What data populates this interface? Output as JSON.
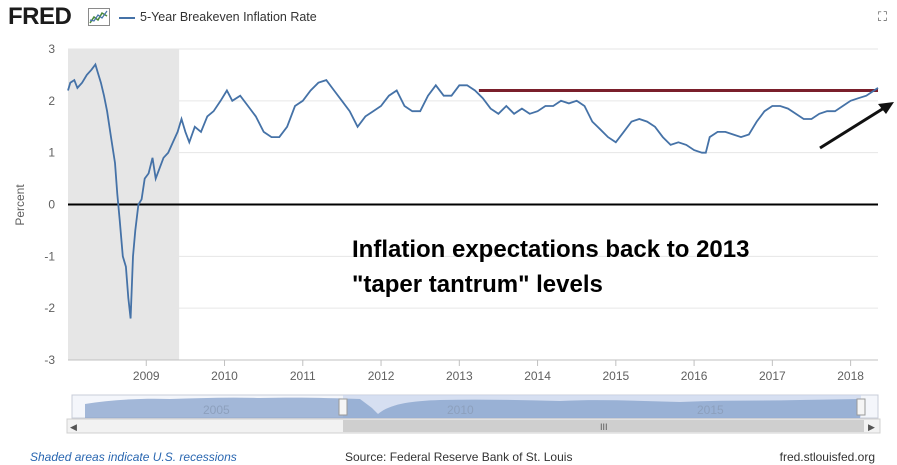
{
  "header": {
    "logo_text": "FRED",
    "series_title": "5-Year Breakeven Inflation Rate"
  },
  "footer": {
    "recession_note": "Shaded areas indicate U.S. recessions",
    "source": "Source: Federal Reserve Bank of St. Louis",
    "site": "fred.stlouisfed.org"
  },
  "navigator": {
    "year_labels": [
      "2005",
      "2010",
      "2015"
    ],
    "grip": "III",
    "left_arrow": "◀",
    "right_arrow": "▶"
  },
  "annotation": {
    "line1": "Inflation expectations back to 2013",
    "line2": "\"taper tantrum\" levels"
  },
  "colors": {
    "series": "#4572a7",
    "recession": "#e6e6e6",
    "reference_line": "#7a1f2b",
    "arrow": "#111111",
    "zero_line": "#000000"
  },
  "chart_data": {
    "type": "line",
    "title": "5-Year Breakeven Inflation Rate",
    "ylabel": "Percent",
    "xlabel": "",
    "ylim": [
      -3,
      3
    ],
    "xlim": [
      2008.0,
      2018.35
    ],
    "y_ticks": [
      -3,
      -2,
      -1,
      0,
      1,
      2,
      3
    ],
    "x_ticks": [
      2009,
      2010,
      2011,
      2012,
      2013,
      2014,
      2015,
      2016,
      2017,
      2018
    ],
    "recession_shading": [
      [
        2008.0,
        2009.42
      ]
    ],
    "reference_line": {
      "y": 2.2,
      "x_start": 2013.25,
      "x_end": 2018.35
    },
    "zero_line": true,
    "series": [
      {
        "name": "5-Year Breakeven Inflation Rate",
        "points": [
          [
            2008.0,
            2.2
          ],
          [
            2008.03,
            2.35
          ],
          [
            2008.08,
            2.4
          ],
          [
            2008.12,
            2.25
          ],
          [
            2008.18,
            2.35
          ],
          [
            2008.24,
            2.5
          ],
          [
            2008.3,
            2.6
          ],
          [
            2008.35,
            2.7
          ],
          [
            2008.38,
            2.55
          ],
          [
            2008.42,
            2.35
          ],
          [
            2008.46,
            2.1
          ],
          [
            2008.5,
            1.8
          ],
          [
            2008.55,
            1.3
          ],
          [
            2008.6,
            0.8
          ],
          [
            2008.63,
            0.2
          ],
          [
            2008.66,
            -0.3
          ],
          [
            2008.7,
            -1.0
          ],
          [
            2008.74,
            -1.2
          ],
          [
            2008.77,
            -1.8
          ],
          [
            2008.8,
            -2.2
          ],
          [
            2008.83,
            -1.0
          ],
          [
            2008.86,
            -0.5
          ],
          [
            2008.9,
            0.0
          ],
          [
            2008.94,
            0.1
          ],
          [
            2008.98,
            0.5
          ],
          [
            2009.03,
            0.6
          ],
          [
            2009.08,
            0.9
          ],
          [
            2009.12,
            0.5
          ],
          [
            2009.17,
            0.7
          ],
          [
            2009.22,
            0.9
          ],
          [
            2009.28,
            1.0
          ],
          [
            2009.34,
            1.2
          ],
          [
            2009.4,
            1.4
          ],
          [
            2009.45,
            1.65
          ],
          [
            2009.5,
            1.4
          ],
          [
            2009.55,
            1.2
          ],
          [
            2009.62,
            1.5
          ],
          [
            2009.7,
            1.4
          ],
          [
            2009.78,
            1.7
          ],
          [
            2009.86,
            1.8
          ],
          [
            2009.95,
            2.0
          ],
          [
            2010.03,
            2.2
          ],
          [
            2010.1,
            2.0
          ],
          [
            2010.2,
            2.1
          ],
          [
            2010.3,
            1.9
          ],
          [
            2010.4,
            1.7
          ],
          [
            2010.5,
            1.4
          ],
          [
            2010.6,
            1.3
          ],
          [
            2010.7,
            1.3
          ],
          [
            2010.8,
            1.5
          ],
          [
            2010.9,
            1.9
          ],
          [
            2011.0,
            2.0
          ],
          [
            2011.1,
            2.2
          ],
          [
            2011.2,
            2.35
          ],
          [
            2011.3,
            2.4
          ],
          [
            2011.4,
            2.2
          ],
          [
            2011.5,
            2.0
          ],
          [
            2011.6,
            1.8
          ],
          [
            2011.7,
            1.5
          ],
          [
            2011.8,
            1.7
          ],
          [
            2011.9,
            1.8
          ],
          [
            2012.0,
            1.9
          ],
          [
            2012.1,
            2.1
          ],
          [
            2012.2,
            2.2
          ],
          [
            2012.3,
            1.9
          ],
          [
            2012.4,
            1.8
          ],
          [
            2012.5,
            1.8
          ],
          [
            2012.6,
            2.1
          ],
          [
            2012.7,
            2.3
          ],
          [
            2012.8,
            2.1
          ],
          [
            2012.9,
            2.1
          ],
          [
            2013.0,
            2.3
          ],
          [
            2013.1,
            2.3
          ],
          [
            2013.2,
            2.2
          ],
          [
            2013.3,
            2.05
          ],
          [
            2013.4,
            1.85
          ],
          [
            2013.5,
            1.75
          ],
          [
            2013.6,
            1.9
          ],
          [
            2013.7,
            1.75
          ],
          [
            2013.8,
            1.85
          ],
          [
            2013.9,
            1.75
          ],
          [
            2014.0,
            1.8
          ],
          [
            2014.1,
            1.9
          ],
          [
            2014.2,
            1.9
          ],
          [
            2014.3,
            2.0
          ],
          [
            2014.4,
            1.95
          ],
          [
            2014.5,
            2.0
          ],
          [
            2014.6,
            1.9
          ],
          [
            2014.7,
            1.6
          ],
          [
            2014.8,
            1.45
          ],
          [
            2014.9,
            1.3
          ],
          [
            2015.0,
            1.2
          ],
          [
            2015.1,
            1.4
          ],
          [
            2015.2,
            1.6
          ],
          [
            2015.3,
            1.65
          ],
          [
            2015.4,
            1.6
          ],
          [
            2015.5,
            1.5
          ],
          [
            2015.6,
            1.3
          ],
          [
            2015.7,
            1.15
          ],
          [
            2015.8,
            1.2
          ],
          [
            2015.9,
            1.15
          ],
          [
            2016.0,
            1.05
          ],
          [
            2016.1,
            1.0
          ],
          [
            2016.15,
            1.0
          ],
          [
            2016.2,
            1.3
          ],
          [
            2016.3,
            1.4
          ],
          [
            2016.4,
            1.4
          ],
          [
            2016.5,
            1.35
          ],
          [
            2016.6,
            1.3
          ],
          [
            2016.7,
            1.35
          ],
          [
            2016.8,
            1.6
          ],
          [
            2016.9,
            1.8
          ],
          [
            2017.0,
            1.9
          ],
          [
            2017.1,
            1.9
          ],
          [
            2017.2,
            1.85
          ],
          [
            2017.3,
            1.75
          ],
          [
            2017.4,
            1.65
          ],
          [
            2017.5,
            1.65
          ],
          [
            2017.6,
            1.75
          ],
          [
            2017.7,
            1.8
          ],
          [
            2017.8,
            1.8
          ],
          [
            2017.9,
            1.9
          ],
          [
            2018.0,
            2.0
          ],
          [
            2018.1,
            2.05
          ],
          [
            2018.2,
            2.1
          ],
          [
            2018.3,
            2.2
          ],
          [
            2018.35,
            2.25
          ]
        ]
      }
    ]
  }
}
